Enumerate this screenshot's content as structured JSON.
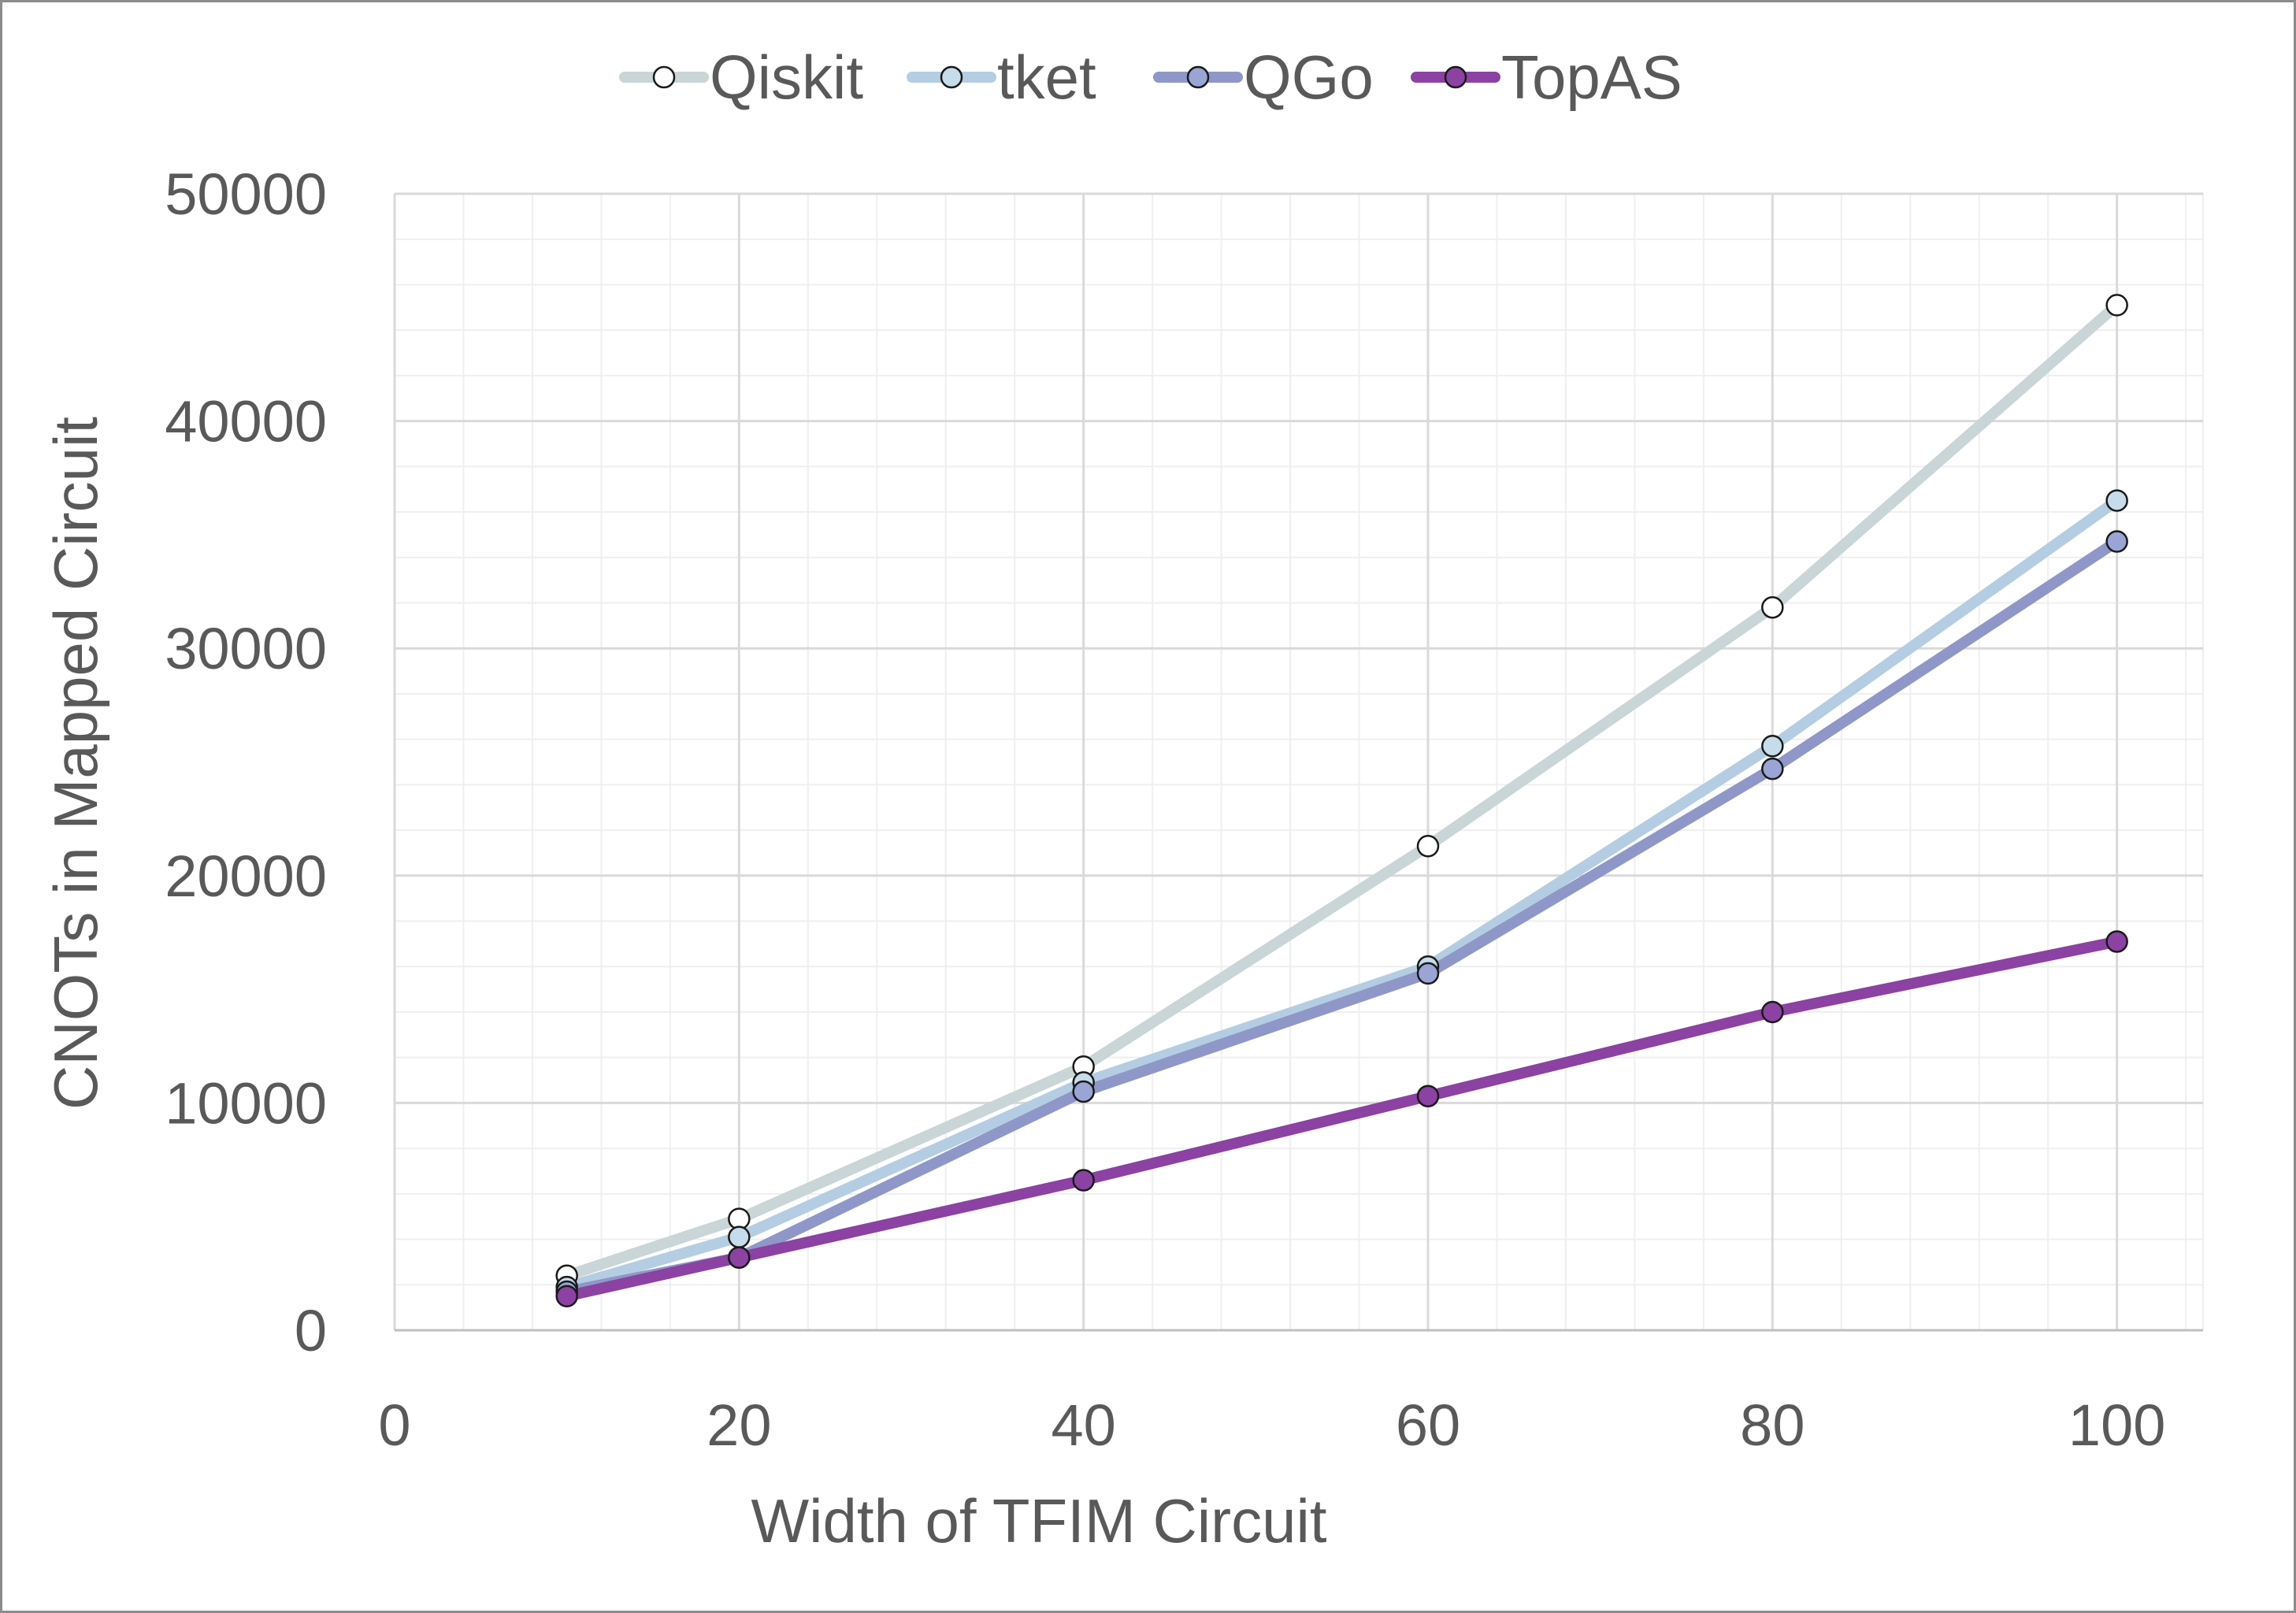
{
  "chart_data": {
    "type": "line",
    "title": "",
    "xlabel": "Width of TFIM Circuit",
    "ylabel": "CNOTs in Mapped Circuit",
    "xlim": [
      0,
      105
    ],
    "ylim": [
      0,
      50000
    ],
    "x_ticks": [
      0,
      20,
      40,
      60,
      80,
      100
    ],
    "y_ticks": [
      0,
      10000,
      20000,
      30000,
      40000,
      50000
    ],
    "x_tick_labels": [
      "0",
      "20",
      "40",
      "60",
      "80",
      "100"
    ],
    "y_tick_labels": [
      "0",
      "10000",
      "20000",
      "30000",
      "40000",
      "50000"
    ],
    "x_minor_step": 4,
    "y_minor_step": 2000,
    "grid": true,
    "legend_position": "top-center",
    "x": [
      10,
      20,
      40,
      60,
      80,
      100
    ],
    "series": [
      {
        "name": "Qiskit",
        "values": [
          2400,
          4900,
          11600,
          21300,
          31800,
          45100
        ],
        "line_color": "#c9d5d6",
        "marker_color": "#ffffff"
      },
      {
        "name": "tket",
        "values": [
          1900,
          4100,
          10900,
          16000,
          25700,
          36500
        ],
        "line_color": "#b4cde3",
        "marker_color": "#c6dcea"
      },
      {
        "name": "QGo",
        "values": [
          1700,
          3200,
          10500,
          15700,
          24700,
          34700
        ],
        "line_color": "#8f97c8",
        "marker_color": "#9aa5d6"
      },
      {
        "name": "TopAS",
        "values": [
          1500,
          3200,
          6600,
          10300,
          14000,
          17100
        ],
        "line_color": "#8b42a2",
        "marker_color": "#8b42a2"
      }
    ]
  }
}
